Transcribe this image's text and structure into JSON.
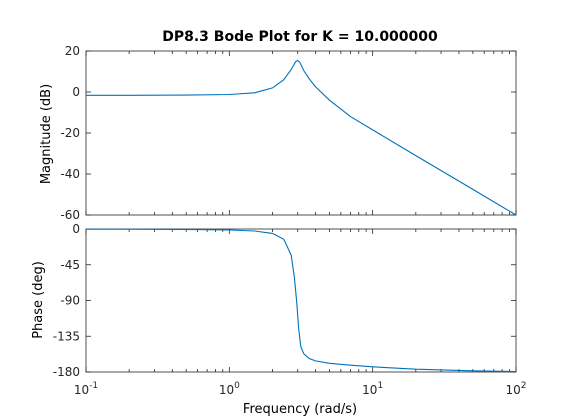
{
  "chart_data": {
    "type": "line",
    "title": "DP8.3 Bode Plot for K = 10.000000",
    "xlabel": "Frequency  (rad/s)",
    "xscale": "log",
    "xlim": [
      0.1,
      100
    ],
    "x_ticks": [
      {
        "base": "10",
        "exp": "-1"
      },
      {
        "base": "10",
        "exp": "0"
      },
      {
        "base": "10",
        "exp": "1"
      },
      {
        "base": "10",
        "exp": "2"
      }
    ],
    "line_color": "#0072BD",
    "subplots": [
      {
        "name": "magnitude",
        "ylabel": "Magnitude (dB)",
        "ylim": [
          -60,
          20
        ],
        "y_ticks": [
          "20",
          "0",
          "-20",
          "-40",
          "-60"
        ],
        "x": [
          0.1,
          0.2,
          0.5,
          1.0,
          1.5,
          2.0,
          2.4,
          2.7,
          2.9,
          3.0,
          3.1,
          3.3,
          3.6,
          4.0,
          5.0,
          7.0,
          10.0,
          20.0,
          50.0,
          100.0
        ],
        "y": [
          -1.6,
          -1.6,
          -1.5,
          -1.2,
          -0.4,
          2.0,
          6.0,
          11.0,
          14.8,
          15.4,
          14.5,
          10.5,
          6.5,
          2.5,
          -4.0,
          -12.0,
          -18.5,
          -31.0,
          -47.5,
          -60.0
        ]
      },
      {
        "name": "phase",
        "ylabel": "Phase (deg)",
        "ylim": [
          -180,
          0
        ],
        "y_ticks": [
          "0",
          "-45",
          "-90",
          "-135",
          "-180"
        ],
        "x": [
          0.1,
          0.3,
          0.6,
          1.0,
          1.5,
          2.0,
          2.4,
          2.7,
          2.85,
          2.95,
          3.05,
          3.15,
          3.3,
          3.6,
          4.0,
          5.0,
          7.0,
          10.0,
          20.0,
          50.0,
          100.0
        ],
        "y": [
          -0.2,
          -0.4,
          -0.7,
          -1.2,
          -2.5,
          -5.5,
          -13.0,
          -33.0,
          -62.0,
          -92.0,
          -126.0,
          -148.0,
          -157.0,
          -163.0,
          -166.0,
          -169.0,
          -171.5,
          -173.5,
          -176.5,
          -178.5,
          -179.5
        ]
      }
    ]
  }
}
